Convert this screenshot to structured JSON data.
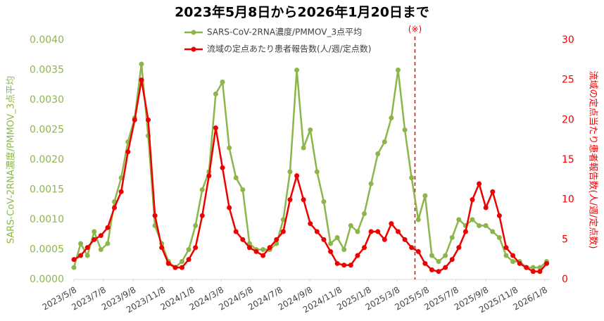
{
  "chart_data": {
    "type": "line",
    "title": "2023年5月8日から2026年1月20日まで",
    "y_label": "SARS-CoV-2RNA濃度/PMMOV_3点平均",
    "y2_label": "流域の定点当たり患者報告数(人/週/定点数)",
    "annotation": {
      "label": "(※)",
      "x": "2025/4/14"
    },
    "legend": "top",
    "xlim": [
      "2023/5/8",
      "2026/1/20"
    ],
    "xticks": [
      "2023/5/8",
      "2023/7/8",
      "2023/9/8",
      "2023/11/8",
      "2024/1/8",
      "2024/3/8",
      "2024/5/8",
      "2024/7/8",
      "2024/9/8",
      "2024/11/8",
      "2025/1/8",
      "2025/3/8",
      "2025/5/8",
      "2025/7/8",
      "2025/9/8",
      "2025/11/8",
      "2026/1/8"
    ],
    "ylim": [
      0,
      0.004
    ],
    "yticks": [
      {
        "value": 0,
        "label": "0.0000"
      },
      {
        "value": 0.0005,
        "label": "0.0005"
      },
      {
        "value": 0.001,
        "label": "0.0010"
      },
      {
        "value": 0.0015,
        "label": "0.0015"
      },
      {
        "value": 0.002,
        "label": "0.0020"
      },
      {
        "value": 0.0025,
        "label": "0.0025"
      },
      {
        "value": 0.003,
        "label": "0.0030"
      },
      {
        "value": 0.0035,
        "label": "0.0035"
      },
      {
        "value": 0.004,
        "label": "0.0040"
      }
    ],
    "y2lim": [
      0,
      30
    ],
    "y2ticks": [
      0,
      5,
      10,
      15,
      20,
      25,
      30
    ],
    "x": [
      "2023/5/8",
      "2023/5/22",
      "2023/6/5",
      "2023/6/19",
      "2023/7/3",
      "2023/7/17",
      "2023/7/31",
      "2023/8/14",
      "2023/8/28",
      "2023/9/11",
      "2023/9/25",
      "2023/10/9",
      "2023/10/23",
      "2023/11/6",
      "2023/11/20",
      "2023/12/4",
      "2023/12/18",
      "2024/1/1",
      "2024/1/15",
      "2024/1/29",
      "2024/2/12",
      "2024/2/26",
      "2024/3/11",
      "2024/3/25",
      "2024/4/8",
      "2024/4/22",
      "2024/5/6",
      "2024/5/20",
      "2024/6/3",
      "2024/6/17",
      "2024/7/1",
      "2024/7/15",
      "2024/7/29",
      "2024/8/12",
      "2024/8/26",
      "2024/9/9",
      "2024/9/23",
      "2024/10/7",
      "2024/10/21",
      "2024/11/4",
      "2024/11/18",
      "2024/12/2",
      "2024/12/16",
      "2024/12/30",
      "2025/1/13",
      "2025/1/27",
      "2025/2/10",
      "2025/2/24",
      "2025/3/10",
      "2025/3/24",
      "2025/4/7",
      "2025/4/21",
      "2025/5/5",
      "2025/5/19",
      "2025/6/2",
      "2025/6/16",
      "2025/6/30",
      "2025/7/14",
      "2025/7/28",
      "2025/8/11",
      "2025/8/25",
      "2025/9/8",
      "2025/9/22",
      "2025/10/6",
      "2025/10/20",
      "2025/11/3",
      "2025/11/17",
      "2025/12/1",
      "2025/12/15",
      "2025/12/29",
      "2026/1/12"
    ],
    "series": [
      {
        "name": "SARS-CoV-2RNA濃度/PMMOV_3点平均",
        "color": "#8db64a",
        "axis": "y",
        "values": [
          0.0002,
          0.0006,
          0.0004,
          0.0008,
          0.0005,
          0.0006,
          0.0013,
          0.0017,
          0.0023,
          0.0027,
          0.0036,
          0.0024,
          0.0009,
          0.0006,
          0.0003,
          0.0002,
          0.0003,
          0.0005,
          0.0009,
          0.0015,
          0.0018,
          0.0031,
          0.0033,
          0.0022,
          0.0017,
          0.0015,
          0.0006,
          0.0005,
          0.0005,
          0.0005,
          0.0006,
          0.001,
          0.0018,
          0.0035,
          0.0022,
          0.0025,
          0.0018,
          0.0013,
          0.0006,
          0.0007,
          0.0005,
          0.0009,
          0.0008,
          0.0011,
          0.0016,
          0.0021,
          0.0023,
          0.0027,
          0.0035,
          0.0025,
          0.0017,
          0.001,
          0.0014,
          0.0004,
          0.0003,
          0.0004,
          0.0007,
          0.001,
          0.0009,
          0.001,
          0.0009,
          0.0009,
          0.0008,
          0.0007,
          0.0004,
          0.0003,
          0.0003,
          0.0002,
          0.0002,
          0.0002,
          0.0003
        ]
      },
      {
        "name": "流域の定点あたり患者報告数(人/週/定点数)",
        "color": "#ee0000",
        "axis": "y2",
        "values": [
          2.5,
          3,
          4,
          5,
          5.5,
          6.5,
          9,
          11,
          16,
          20,
          25,
          20,
          8,
          4,
          2,
          1.5,
          1.5,
          2.5,
          4,
          8,
          13,
          19,
          14,
          9,
          6,
          5,
          4,
          3.5,
          3,
          4,
          5,
          6,
          10,
          13,
          10,
          7,
          6,
          5,
          3.5,
          2,
          1.8,
          1.8,
          3,
          4,
          6,
          6,
          5,
          7,
          6,
          5,
          4,
          3.5,
          2,
          1.2,
          1,
          1.5,
          2.5,
          4,
          6,
          10,
          12,
          9,
          11,
          8,
          4,
          3,
          2,
          1.5,
          1,
          1,
          2
        ]
      }
    ]
  }
}
